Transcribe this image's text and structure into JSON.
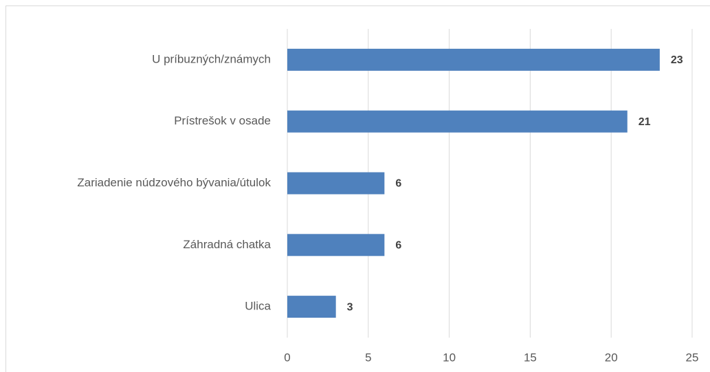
{
  "chart_data": {
    "type": "bar",
    "orientation": "horizontal",
    "categories": [
      "U príbuzných/známych",
      "Prístrešok v osade",
      "Zariadenie núdzového bývania/útulok",
      "Záhradná chatka",
      "Ulica"
    ],
    "values": [
      23,
      21,
      6,
      6,
      3
    ],
    "color": "#4f81bd",
    "xlim": [
      0,
      25
    ],
    "xticks": [
      0,
      5,
      10,
      15,
      20,
      25
    ],
    "grid": true
  }
}
